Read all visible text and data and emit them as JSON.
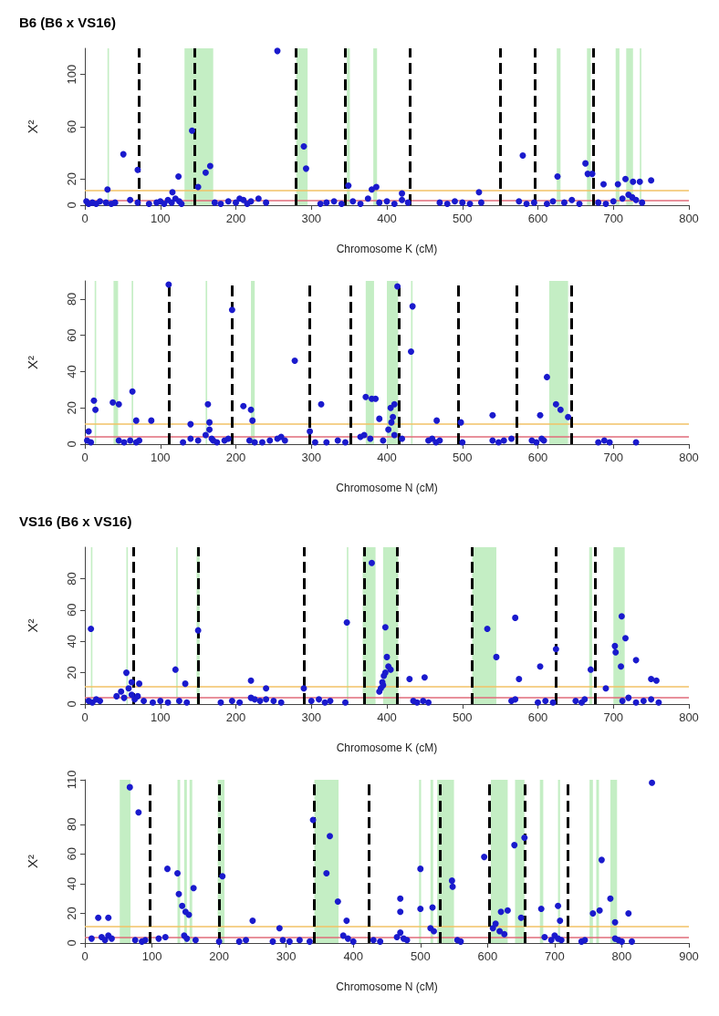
{
  "chart_data": [
    {
      "type": "scatter",
      "title": "B6 (B6 x VS16)",
      "xlabel": "Chromosome K (cM)",
      "ylabel": "X²",
      "xlim": [
        0,
        800
      ],
      "xticks": [
        0,
        100,
        200,
        300,
        400,
        500,
        600,
        700,
        800
      ],
      "ylim": [
        0,
        120
      ],
      "yticks": [
        0,
        20,
        60,
        100
      ],
      "grid": false,
      "marker": "circle",
      "series": [
        {
          "color": "#1a1acd",
          "x": [
            2,
            5,
            10,
            15,
            20,
            28,
            35,
            40,
            60,
            70,
            85,
            95,
            100,
            105,
            110,
            115,
            120,
            125,
            128,
            172,
            180,
            190,
            200,
            205,
            210,
            215,
            220,
            230,
            240,
            312,
            320,
            330,
            340,
            355,
            365,
            375,
            390,
            400,
            410,
            420,
            428,
            470,
            480,
            490,
            500,
            510,
            525,
            575,
            585,
            595,
            612,
            620,
            635,
            645,
            655,
            680,
            690,
            700,
            712,
            720,
            725,
            730,
            738,
            51,
            30,
            116,
            124,
            142,
            150,
            160,
            166,
            255,
            290,
            293,
            349,
            380,
            386,
            420,
            522,
            580,
            626,
            663,
            666,
            672,
            687,
            706,
            716,
            726,
            735,
            750,
            70
          ],
          "values": [
            3,
            1,
            2,
            1,
            3,
            2,
            1,
            2,
            4,
            2,
            1,
            2,
            3,
            1,
            4,
            2,
            5,
            3,
            1,
            2,
            1,
            3,
            2,
            5,
            4,
            1,
            3,
            5,
            2,
            1,
            2,
            3,
            1,
            3,
            1,
            5,
            2,
            3,
            1,
            4,
            2,
            2,
            1,
            3,
            2,
            1,
            2,
            3,
            1,
            2,
            1,
            3,
            2,
            4,
            1,
            2,
            1,
            3,
            5,
            8,
            6,
            4,
            2,
            39,
            12,
            10,
            22,
            57,
            14,
            25,
            30,
            118,
            45,
            28,
            15,
            12,
            14,
            9,
            10,
            38,
            22,
            32,
            24,
            24,
            16,
            16,
            20,
            18,
            18,
            19,
            27
          ]
        }
      ],
      "bands": [
        {
          "axis": "x",
          "from": 30,
          "to": 32,
          "color": "#c4eec4"
        },
        {
          "axis": "x",
          "from": 132,
          "to": 170,
          "color": "#c4eec4"
        },
        {
          "axis": "x",
          "from": 280,
          "to": 295,
          "color": "#c4eec4"
        },
        {
          "axis": "x",
          "from": 347,
          "to": 351,
          "color": "#c4eec4"
        },
        {
          "axis": "x",
          "from": 382,
          "to": 387,
          "color": "#c4eec4"
        },
        {
          "axis": "x",
          "from": 625,
          "to": 630,
          "color": "#c4eec4"
        },
        {
          "axis": "x",
          "from": 665,
          "to": 670,
          "color": "#c4eec4"
        },
        {
          "axis": "x",
          "from": 703,
          "to": 708,
          "color": "#c4eec4"
        },
        {
          "axis": "x",
          "from": 717,
          "to": 726,
          "color": "#c4eec4"
        },
        {
          "axis": "x",
          "from": 735,
          "to": 737,
          "color": "#c4eec4"
        }
      ],
      "ref_lines": [
        {
          "axis": "y",
          "value": 11,
          "color": "#f2c266",
          "line_style": "solid"
        },
        {
          "axis": "y",
          "value": 4,
          "color": "#e06b7a",
          "line_style": "solid"
        },
        {
          "axis": "x",
          "value": 72,
          "color": "#000000",
          "line_style": "dashed"
        },
        {
          "axis": "x",
          "value": 145,
          "color": "#000000",
          "line_style": "dashed"
        },
        {
          "axis": "x",
          "value": 280,
          "color": "#000000",
          "line_style": "dashed"
        },
        {
          "axis": "x",
          "value": 345,
          "color": "#000000",
          "line_style": "dashed"
        },
        {
          "axis": "x",
          "value": 430,
          "color": "#000000",
          "line_style": "dashed"
        },
        {
          "axis": "x",
          "value": 550,
          "color": "#000000",
          "line_style": "dashed"
        },
        {
          "axis": "x",
          "value": 596,
          "color": "#000000",
          "line_style": "dashed"
        },
        {
          "axis": "x",
          "value": 674,
          "color": "#000000",
          "line_style": "dashed"
        }
      ]
    },
    {
      "type": "scatter",
      "xlabel": "Chromosome N (cM)",
      "ylabel": "X²",
      "xlim": [
        0,
        800
      ],
      "xticks": [
        0,
        100,
        200,
        300,
        400,
        500,
        600,
        700,
        800
      ],
      "ylim": [
        0,
        90
      ],
      "yticks": [
        0,
        20,
        40,
        60,
        80
      ],
      "grid": false,
      "marker": "circle",
      "series": [
        {
          "color": "#1a1acd",
          "x": [
            3,
            8,
            45,
            52,
            60,
            68,
            72,
            130,
            140,
            150,
            160,
            165,
            168,
            170,
            175,
            185,
            190,
            218,
            225,
            235,
            245,
            255,
            260,
            265,
            305,
            320,
            335,
            345,
            365,
            370,
            378,
            395,
            402,
            406,
            410,
            420,
            455,
            460,
            465,
            470,
            500,
            540,
            548,
            555,
            565,
            592,
            598,
            605,
            608,
            680,
            688,
            695,
            730,
            12,
            14,
            37,
            45,
            63,
            68,
            88,
            111,
            140,
            163,
            165,
            195,
            210,
            220,
            222,
            278,
            298,
            313,
            372,
            380,
            385,
            390,
            405,
            408,
            410,
            414,
            434,
            432,
            466,
            498,
            540,
            612,
            603,
            624,
            630,
            640,
            5
          ],
          "values": [
            2,
            1,
            2,
            1,
            2,
            1,
            2,
            1,
            3,
            2,
            5,
            8,
            3,
            2,
            1,
            2,
            3,
            2,
            1,
            1,
            2,
            3,
            4,
            2,
            1,
            1,
            2,
            1,
            4,
            5,
            3,
            2,
            8,
            12,
            5,
            3,
            2,
            3,
            1,
            2,
            1,
            2,
            1,
            2,
            3,
            2,
            1,
            3,
            2,
            1,
            2,
            1,
            1,
            24,
            19,
            23,
            22,
            29,
            13,
            13,
            88,
            11,
            22,
            12,
            74,
            21,
            19,
            13,
            46,
            7,
            22,
            26,
            25,
            25,
            14,
            20,
            15,
            22,
            87,
            76,
            51,
            13,
            12,
            16,
            37,
            16,
            22,
            19,
            15,
            7
          ]
        }
      ],
      "bands": [
        {
          "axis": "x",
          "from": 13,
          "to": 15,
          "color": "#c4eec4"
        },
        {
          "axis": "x",
          "from": 38,
          "to": 44,
          "color": "#c4eec4"
        },
        {
          "axis": "x",
          "from": 62,
          "to": 64,
          "color": "#c4eec4"
        },
        {
          "axis": "x",
          "from": 160,
          "to": 162,
          "color": "#c4eec4"
        },
        {
          "axis": "x",
          "from": 220,
          "to": 225,
          "color": "#c4eec4"
        },
        {
          "axis": "x",
          "from": 372,
          "to": 383,
          "color": "#c4eec4"
        },
        {
          "axis": "x",
          "from": 400,
          "to": 415,
          "color": "#c4eec4"
        },
        {
          "axis": "x",
          "from": 432,
          "to": 434,
          "color": "#c4eec4"
        },
        {
          "axis": "x",
          "from": 615,
          "to": 640,
          "color": "#c4eec4"
        }
      ],
      "ref_lines": [
        {
          "axis": "y",
          "value": 11,
          "color": "#f2c266",
          "line_style": "solid"
        },
        {
          "axis": "y",
          "value": 4,
          "color": "#e06b7a",
          "line_style": "solid"
        },
        {
          "axis": "x",
          "value": 111,
          "color": "#000000",
          "line_style": "dashed"
        },
        {
          "axis": "x",
          "value": 195,
          "color": "#000000",
          "line_style": "dashed"
        },
        {
          "axis": "x",
          "value": 298,
          "color": "#000000",
          "line_style": "dashed"
        },
        {
          "axis": "x",
          "value": 352,
          "color": "#000000",
          "line_style": "dashed"
        },
        {
          "axis": "x",
          "value": 416,
          "color": "#000000",
          "line_style": "dashed"
        },
        {
          "axis": "x",
          "value": 494,
          "color": "#000000",
          "line_style": "dashed"
        },
        {
          "axis": "x",
          "value": 572,
          "color": "#000000",
          "line_style": "dashed"
        },
        {
          "axis": "x",
          "value": 644,
          "color": "#000000",
          "line_style": "dashed"
        }
      ]
    },
    {
      "type": "scatter",
      "title": "VS16 (B6 x VS16)",
      "xlabel": "Chromosome K (cM)",
      "ylabel": "X²",
      "xlim": [
        0,
        800
      ],
      "xticks": [
        0,
        100,
        200,
        300,
        400,
        500,
        600,
        700,
        800
      ],
      "ylim": [
        0,
        100
      ],
      "yticks": [
        0,
        20,
        40,
        60,
        80
      ],
      "grid": false,
      "marker": "circle",
      "series": [
        {
          "color": "#1a1acd",
          "x": [
            5,
            10,
            15,
            20,
            42,
            48,
            52,
            58,
            62,
            66,
            70,
            78,
            90,
            100,
            110,
            125,
            135,
            180,
            195,
            205,
            220,
            225,
            232,
            240,
            250,
            260,
            300,
            310,
            318,
            325,
            345,
            390,
            392,
            394,
            396,
            398,
            435,
            440,
            448,
            455,
            565,
            570,
            600,
            610,
            620,
            650,
            658,
            662,
            712,
            720,
            730,
            740,
            750,
            760,
            8,
            55,
            62,
            72,
            120,
            133,
            150,
            220,
            240,
            290,
            347,
            380,
            398,
            400,
            402,
            405,
            395,
            430,
            450,
            533,
            545,
            570,
            575,
            603,
            624,
            670,
            690,
            702,
            703,
            711,
            716,
            730,
            750,
            757,
            710
          ],
          "values": [
            2,
            1,
            3,
            2,
            5,
            8,
            4,
            10,
            6,
            3,
            5,
            2,
            1,
            2,
            1,
            2,
            1,
            1,
            2,
            1,
            4,
            3,
            2,
            3,
            2,
            1,
            2,
            3,
            1,
            2,
            1,
            8,
            10,
            14,
            18,
            20,
            2,
            1,
            2,
            1,
            2,
            3,
            1,
            2,
            1,
            2,
            1,
            3,
            2,
            4,
            1,
            2,
            3,
            1,
            48,
            20,
            14,
            13,
            22,
            13,
            47,
            15,
            10,
            10,
            52,
            90,
            49,
            30,
            24,
            22,
            12,
            16,
            17,
            48,
            30,
            55,
            16,
            24,
            35,
            22,
            10,
            37,
            33,
            56,
            42,
            28,
            16,
            15,
            24
          ]
        }
      ],
      "bands": [
        {
          "axis": "x",
          "from": 8,
          "to": 10,
          "color": "#c4eec4"
        },
        {
          "axis": "x",
          "from": 55,
          "to": 57,
          "color": "#c4eec4"
        },
        {
          "axis": "x",
          "from": 121,
          "to": 123,
          "color": "#c4eec4"
        },
        {
          "axis": "x",
          "from": 148,
          "to": 152,
          "color": "#c4eec4"
        },
        {
          "axis": "x",
          "from": 347,
          "to": 349,
          "color": "#c4eec4"
        },
        {
          "axis": "x",
          "from": 368,
          "to": 385,
          "color": "#c4eec4"
        },
        {
          "axis": "x",
          "from": 395,
          "to": 415,
          "color": "#c4eec4"
        },
        {
          "axis": "x",
          "from": 513,
          "to": 545,
          "color": "#c4eec4"
        },
        {
          "axis": "x",
          "from": 668,
          "to": 672,
          "color": "#c4eec4"
        },
        {
          "axis": "x",
          "from": 700,
          "to": 715,
          "color": "#c4eec4"
        }
      ],
      "ref_lines": [
        {
          "axis": "y",
          "value": 11,
          "color": "#f2c266",
          "line_style": "solid"
        },
        {
          "axis": "y",
          "value": 4,
          "color": "#e06b7a",
          "line_style": "solid"
        },
        {
          "axis": "x",
          "value": 64,
          "color": "#000000",
          "line_style": "dashed"
        },
        {
          "axis": "x",
          "value": 150,
          "color": "#000000",
          "line_style": "dashed"
        },
        {
          "axis": "x",
          "value": 290,
          "color": "#000000",
          "line_style": "dashed"
        },
        {
          "axis": "x",
          "value": 370,
          "color": "#000000",
          "line_style": "dashed"
        },
        {
          "axis": "x",
          "value": 413,
          "color": "#000000",
          "line_style": "dashed"
        },
        {
          "axis": "x",
          "value": 513,
          "color": "#000000",
          "line_style": "dashed"
        },
        {
          "axis": "x",
          "value": 624,
          "color": "#000000",
          "line_style": "dashed"
        },
        {
          "axis": "x",
          "value": 676,
          "color": "#000000",
          "line_style": "dashed"
        }
      ]
    },
    {
      "type": "scatter",
      "xlabel": "Chromosome N (cM)",
      "ylabel": "X²",
      "xlim": [
        0,
        900
      ],
      "xticks": [
        0,
        100,
        200,
        300,
        400,
        500,
        600,
        700,
        800,
        900
      ],
      "ylim": [
        0,
        110
      ],
      "yticks": [
        0,
        20,
        40,
        60,
        80,
        110
      ],
      "grid": false,
      "marker": "circle",
      "series": [
        {
          "color": "#1a1acd",
          "x": [
            10,
            25,
            30,
            35,
            40,
            75,
            85,
            90,
            110,
            120,
            148,
            152,
            165,
            200,
            230,
            240,
            280,
            295,
            305,
            320,
            335,
            385,
            392,
            400,
            430,
            440,
            465,
            470,
            475,
            480,
            515,
            520,
            555,
            560,
            608,
            612,
            618,
            625,
            685,
            695,
            700,
            705,
            710,
            740,
            745,
            790,
            795,
            800,
            815,
            20,
            35,
            67,
            80,
            123,
            138,
            140,
            145,
            150,
            155,
            162,
            205,
            250,
            290,
            340,
            360,
            365,
            377,
            390,
            470,
            470,
            500,
            500,
            518,
            547,
            548,
            595,
            620,
            630,
            640,
            650,
            655,
            680,
            705,
            708,
            757,
            767,
            770,
            783,
            810,
            845,
            790
          ],
          "values": [
            3,
            4,
            2,
            5,
            3,
            2,
            1,
            2,
            3,
            4,
            5,
            3,
            2,
            1,
            1,
            2,
            1,
            2,
            1,
            2,
            1,
            5,
            3,
            1,
            2,
            1,
            4,
            7,
            3,
            2,
            10,
            8,
            2,
            1,
            10,
            13,
            8,
            6,
            4,
            2,
            5,
            3,
            2,
            1,
            2,
            3,
            2,
            1,
            1,
            17,
            17,
            105,
            88,
            50,
            47,
            33,
            25,
            21,
            19,
            37,
            45,
            15,
            10,
            83,
            47,
            72,
            28,
            15,
            30,
            21,
            50,
            23,
            24,
            42,
            38,
            58,
            21,
            22,
            66,
            17,
            71,
            23,
            25,
            15,
            20,
            22,
            56,
            30,
            20,
            108,
            14
          ]
        }
      ],
      "bands": [
        {
          "axis": "x",
          "from": 52,
          "to": 68,
          "color": "#c4eec4"
        },
        {
          "axis": "x",
          "from": 138,
          "to": 142,
          "color": "#c4eec4"
        },
        {
          "axis": "x",
          "from": 148,
          "to": 152,
          "color": "#c4eec4"
        },
        {
          "axis": "x",
          "from": 156,
          "to": 160,
          "color": "#c4eec4"
        },
        {
          "axis": "x",
          "from": 198,
          "to": 208,
          "color": "#c4eec4"
        },
        {
          "axis": "x",
          "from": 342,
          "to": 378,
          "color": "#c4eec4"
        },
        {
          "axis": "x",
          "from": 498,
          "to": 501,
          "color": "#c4eec4"
        },
        {
          "axis": "x",
          "from": 515,
          "to": 519,
          "color": "#c4eec4"
        },
        {
          "axis": "x",
          "from": 525,
          "to": 550,
          "color": "#c4eec4"
        },
        {
          "axis": "x",
          "from": 605,
          "to": 630,
          "color": "#c4eec4"
        },
        {
          "axis": "x",
          "from": 641,
          "to": 655,
          "color": "#c4eec4"
        },
        {
          "axis": "x",
          "from": 678,
          "to": 683,
          "color": "#c4eec4"
        },
        {
          "axis": "x",
          "from": 705,
          "to": 708,
          "color": "#c4eec4"
        },
        {
          "axis": "x",
          "from": 752,
          "to": 757,
          "color": "#c4eec4"
        },
        {
          "axis": "x",
          "from": 762,
          "to": 766,
          "color": "#c4eec4"
        },
        {
          "axis": "x",
          "from": 783,
          "to": 793,
          "color": "#c4eec4"
        }
      ],
      "ref_lines": [
        {
          "axis": "y",
          "value": 11,
          "color": "#f2c266",
          "line_style": "solid"
        },
        {
          "axis": "y",
          "value": 4,
          "color": "#e06b7a",
          "line_style": "solid"
        },
        {
          "axis": "x",
          "value": 97,
          "color": "#000000",
          "line_style": "dashed"
        },
        {
          "axis": "x",
          "value": 200,
          "color": "#000000",
          "line_style": "dashed"
        },
        {
          "axis": "x",
          "value": 342,
          "color": "#000000",
          "line_style": "dashed"
        },
        {
          "axis": "x",
          "value": 423,
          "color": "#000000",
          "line_style": "dashed"
        },
        {
          "axis": "x",
          "value": 529,
          "color": "#000000",
          "line_style": "dashed"
        },
        {
          "axis": "x",
          "value": 602,
          "color": "#000000",
          "line_style": "dashed"
        },
        {
          "axis": "x",
          "value": 656,
          "color": "#000000",
          "line_style": "dashed"
        },
        {
          "axis": "x",
          "value": 719,
          "color": "#000000",
          "line_style": "dashed"
        }
      ]
    }
  ]
}
